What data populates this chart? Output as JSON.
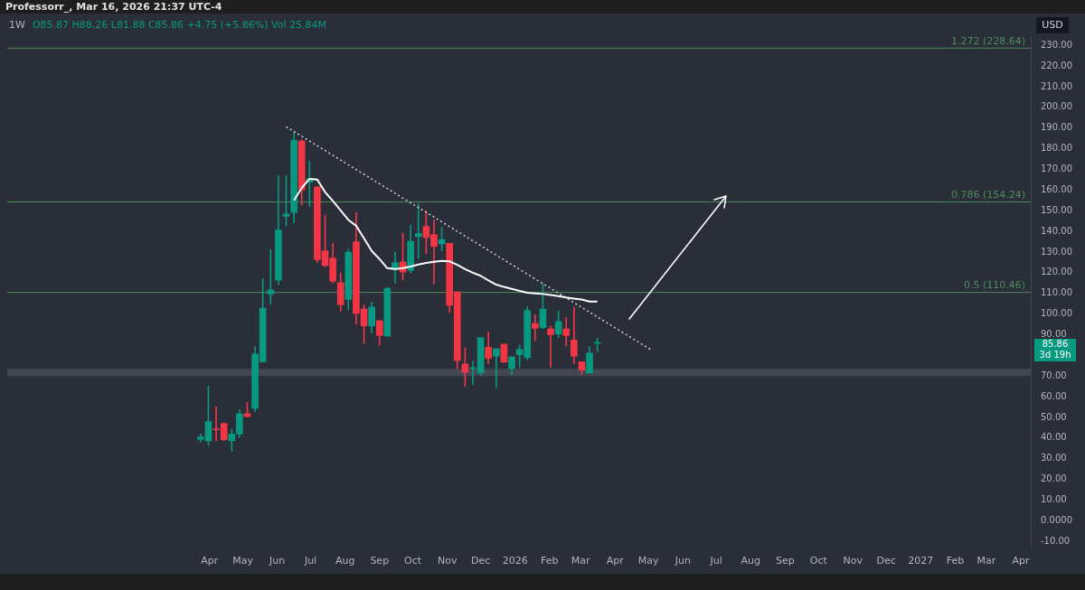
{
  "chart_data": {
    "type": "candlestick",
    "title": "1W",
    "subtitle": "O85.87 H88.26 L81.88 C85.86 +4.75 (+5.86%) Vol 25.84M",
    "x": [
      "2025-03-24",
      "2025-03-31",
      "2025-04-07",
      "2025-04-14",
      "2025-04-21",
      "2025-04-28",
      "2025-05-05",
      "2025-05-12",
      "2025-05-19",
      "2025-05-26",
      "2025-06-02",
      "2025-06-09",
      "2025-06-16",
      "2025-06-23",
      "2025-06-30",
      "2025-07-07",
      "2025-07-14",
      "2025-07-21",
      "2025-07-28",
      "2025-08-04",
      "2025-08-11",
      "2025-08-18",
      "2025-08-25",
      "2025-09-01",
      "2025-09-08",
      "2025-09-15",
      "2025-09-22",
      "2025-09-29",
      "2025-10-06",
      "2025-10-13",
      "2025-10-20",
      "2025-10-27",
      "2025-11-03",
      "2025-11-10",
      "2025-11-17",
      "2025-11-24",
      "2025-12-01",
      "2025-12-08",
      "2025-12-15",
      "2025-12-22",
      "2025-12-29",
      "2026-01-05",
      "2026-01-12",
      "2026-01-19",
      "2026-01-26",
      "2026-02-02",
      "2026-02-09",
      "2026-02-16",
      "2026-02-23",
      "2026-03-02",
      "2026-03-09",
      "2026-03-16"
    ],
    "ohlc": [
      [
        39.4,
        41.9,
        38,
        40.5
      ],
      [
        38.7,
        65.1,
        36.6,
        48
      ],
      [
        44.2,
        55.1,
        38.7,
        44
      ],
      [
        47,
        47.5,
        38.7,
        39.2
      ],
      [
        38.7,
        44.4,
        33.7,
        41.9
      ],
      [
        41.9,
        53.7,
        40.2,
        51.8
      ],
      [
        51.8,
        57.2,
        50.1,
        50.4
      ],
      [
        54.4,
        84.3,
        53,
        80.7
      ],
      [
        76.9,
        117.1,
        76.9,
        102.8
      ],
      [
        109.7,
        131.3,
        105,
        111.7
      ],
      [
        116.4,
        166.9,
        114.2,
        140.6
      ],
      [
        147.3,
        166.9,
        142.7,
        148.4
      ],
      [
        149.1,
        187.6,
        144.1,
        184
      ],
      [
        183.7,
        184.5,
        152.7,
        160.1
      ],
      [
        163.8,
        174.1,
        152,
        165.5
      ],
      [
        161.5,
        161.5,
        125,
        126.3
      ],
      [
        130.6,
        147.7,
        122.8,
        123.5
      ],
      [
        127,
        134.2,
        114.9,
        115.9
      ],
      [
        115.2,
        119.9,
        101.4,
        104.5
      ],
      [
        107.1,
        131.3,
        102.1,
        129.9
      ],
      [
        134.9,
        149.1,
        95,
        100.3
      ],
      [
        102.4,
        104.3,
        85.7,
        94.3
      ],
      [
        94.3,
        105.7,
        90.7,
        103.4
      ],
      [
        96.8,
        96.8,
        85,
        89.6
      ],
      [
        89.3,
        113,
        89.3,
        112.4
      ],
      [
        121.4,
        129.9,
        114.9,
        124.9
      ],
      [
        125.2,
        139.1,
        116.4,
        120.3
      ],
      [
        121.1,
        143,
        119.9,
        135.2
      ],
      [
        137.4,
        153.4,
        126.8,
        139
      ],
      [
        142.4,
        149.8,
        129.2,
        137
      ],
      [
        138.4,
        145.6,
        114.5,
        132.7
      ],
      [
        133.9,
        142,
        130.6,
        136
      ],
      [
        134.2,
        134.2,
        100.7,
        104.2
      ],
      [
        110.7,
        110.7,
        73.6,
        77.5
      ],
      [
        75.8,
        83.6,
        65.1,
        71.8
      ],
      [
        73.6,
        77.2,
        65.8,
        74
      ],
      [
        71.5,
        88.6,
        70.1,
        88.6
      ],
      [
        83.9,
        91.4,
        75.8,
        78.6
      ],
      [
        79.6,
        83.2,
        64.4,
        83.2
      ],
      [
        85.4,
        85.4,
        76.5,
        76.8
      ],
      [
        73.6,
        79.3,
        70.8,
        79.3
      ],
      [
        80.3,
        85,
        74.3,
        82.9
      ],
      [
        78.9,
        103.5,
        77.9,
        101.7
      ],
      [
        95.4,
        99.7,
        87.2,
        93.1
      ],
      [
        93.4,
        114.5,
        92.9,
        102.4
      ],
      [
        92.8,
        94.3,
        74.3,
        90
      ],
      [
        90.4,
        101.4,
        88.6,
        96.4
      ],
      [
        92.8,
        98.3,
        84.6,
        89.6
      ],
      [
        87.4,
        103.5,
        76,
        79.6
      ],
      [
        76.9,
        76.9,
        70.8,
        72.9
      ],
      [
        71.5,
        84.3,
        71.5,
        81.11
      ],
      [
        85.87,
        88.26,
        81.88,
        85.86
      ]
    ],
    "colors": [
      "#089981",
      "#089981",
      "#f23645",
      "#f23645",
      "#089981",
      "#089981",
      "#f23645",
      "#089981",
      "#089981",
      "#089981",
      "#089981",
      "#089981",
      "#089981",
      "#f23645",
      "#089981",
      "#f23645",
      "#f23645",
      "#f23645",
      "#f23645",
      "#089981",
      "#f23645",
      "#f23645",
      "#089981",
      "#f23645",
      "#089981",
      "#089981",
      "#f23645",
      "#089981",
      "#089981",
      "#f23645",
      "#f23645",
      "#089981",
      "#f23645",
      "#f23645",
      "#f23645",
      "#089981",
      "#089981",
      "#f23645",
      "#089981",
      "#f23645",
      "#089981",
      "#089981",
      "#089981",
      "#f23645",
      "#089981",
      "#f23645",
      "#089981",
      "#f23645",
      "#f23645",
      "#f23645",
      "#089981",
      "#089981"
    ],
    "series": [
      {
        "type": "line",
        "color": "#ffffff",
        "line_style": "solid",
        "x": [
          "2025-06-16",
          "2025-06-23",
          "2025-06-30",
          "2025-07-07",
          "2025-07-14",
          "2025-07-21",
          "2025-07-28",
          "2025-08-04",
          "2025-08-11",
          "2025-08-18",
          "2025-08-25",
          "2025-09-01",
          "2025-09-08",
          "2025-09-15",
          "2025-09-22",
          "2025-09-29",
          "2025-10-06",
          "2025-10-13",
          "2025-10-20",
          "2025-10-27",
          "2025-11-03",
          "2025-11-10",
          "2025-11-17",
          "2025-11-24",
          "2025-12-01",
          "2025-12-08",
          "2025-12-15",
          "2025-12-22",
          "2025-12-29",
          "2026-01-05",
          "2026-01-12",
          "2026-01-19",
          "2026-01-26",
          "2026-02-02",
          "2026-02-09",
          "2026-02-16",
          "2026-02-23",
          "2026-03-02",
          "2026-03-09",
          "2026-03-16"
        ],
        "values": [
          155,
          161,
          165.4,
          165,
          159,
          154.7,
          150.1,
          145.5,
          142.7,
          136.6,
          130.5,
          126.6,
          122.2,
          121.8,
          122.2,
          123,
          124,
          124.7,
          125.3,
          125.7,
          125.5,
          123.8,
          121.7,
          120,
          118.5,
          116.3,
          114.2,
          113.1,
          112.2,
          111.2,
          110.3,
          110,
          109.7,
          109.2,
          108.7,
          108,
          107.5,
          107,
          106,
          106
        ]
      },
      {
        "type": "line",
        "color": "#d1d4dc",
        "line_style": "dotted",
        "x": [
          "2025-06-09",
          "2026-05-04"
        ],
        "values": [
          190.6,
          82.5
        ]
      }
    ],
    "ref_lines": [
      {
        "axis": "y",
        "value": 228.64,
        "label": "1.272 (228.64)",
        "color": "#4c8c5a"
      },
      {
        "axis": "y",
        "value": 154.24,
        "label": "0.786 (154.24)",
        "color": "#4c8c5a"
      },
      {
        "axis": "y",
        "value": 110.46,
        "label": "0.5 (110.46)",
        "color": "#4c8c5a"
      }
    ],
    "bands": [
      {
        "axis": "y",
        "from": 70,
        "to": 73.5,
        "color": "#4a4e58"
      }
    ],
    "annotations": [
      "Professorr_, Mar 16, 2026 21:37 UTC-4",
      "USD",
      "85.86",
      "3d 19h"
    ],
    "ylim": [
      -12,
      234
    ],
    "yticks": [
      {
        "value": -10,
        "label": "-10.00"
      },
      {
        "value": 0,
        "label": "0.0000"
      },
      {
        "value": 10,
        "label": "10.00"
      },
      {
        "value": 20,
        "label": "20.00"
      },
      {
        "value": 30,
        "label": "30.00"
      },
      {
        "value": 40,
        "label": "40.00"
      },
      {
        "value": 50,
        "label": "50.00"
      },
      {
        "value": 60,
        "label": "60.00"
      },
      {
        "value": 70,
        "label": "70.00"
      },
      {
        "value": 90,
        "label": "90.00"
      },
      {
        "value": 100,
        "label": "100.00"
      },
      {
        "value": 110,
        "label": "110.00"
      },
      {
        "value": 120,
        "label": "120.00"
      },
      {
        "value": 130,
        "label": "130.00"
      },
      {
        "value": 140,
        "label": "140.00"
      },
      {
        "value": 150,
        "label": "150.00"
      },
      {
        "value": 160,
        "label": "160.00"
      },
      {
        "value": 170,
        "label": "170.00"
      },
      {
        "value": 180,
        "label": "180.00"
      },
      {
        "value": 190,
        "label": "190.00"
      },
      {
        "value": 200,
        "label": "200.00"
      },
      {
        "value": 210,
        "label": "210.00"
      },
      {
        "value": 220,
        "label": "220.00"
      },
      {
        "value": 230,
        "label": "230.00"
      }
    ],
    "xlim": [
      "2024-10-01",
      "2027-04-10"
    ],
    "xticks": [
      {
        "value": "2025-04-01",
        "label": "Apr"
      },
      {
        "value": "2025-05-01",
        "label": "May"
      },
      {
        "value": "2025-06-01",
        "label": "Jun"
      },
      {
        "value": "2025-07-01",
        "label": "Jul"
      },
      {
        "value": "2025-08-01",
        "label": "Aug"
      },
      {
        "value": "2025-09-01",
        "label": "Sep"
      },
      {
        "value": "2025-10-01",
        "label": "Oct"
      },
      {
        "value": "2025-11-01",
        "label": "Nov"
      },
      {
        "value": "2025-12-01",
        "label": "Dec"
      },
      {
        "value": "2026-01-01",
        "label": "2026"
      },
      {
        "value": "2026-02-01",
        "label": "Feb"
      },
      {
        "value": "2026-03-01",
        "label": "Mar"
      },
      {
        "value": "2026-04-01",
        "label": "Apr"
      },
      {
        "value": "2026-05-01",
        "label": "May"
      },
      {
        "value": "2026-06-01",
        "label": "Jun"
      },
      {
        "value": "2026-07-01",
        "label": "Jul"
      },
      {
        "value": "2026-08-01",
        "label": "Aug"
      },
      {
        "value": "2026-09-01",
        "label": "Sep"
      },
      {
        "value": "2026-10-01",
        "label": "Oct"
      },
      {
        "value": "2026-11-01",
        "label": "Nov"
      },
      {
        "value": "2026-12-01",
        "label": "Dec"
      },
      {
        "value": "2027-01-01",
        "label": "2027"
      },
      {
        "value": "2027-02-01",
        "label": "Feb"
      },
      {
        "value": "2027-03-01",
        "label": "Mar"
      },
      {
        "value": "2027-04-01",
        "label": "Apr"
      }
    ],
    "grid": false,
    "legend": false
  }
}
